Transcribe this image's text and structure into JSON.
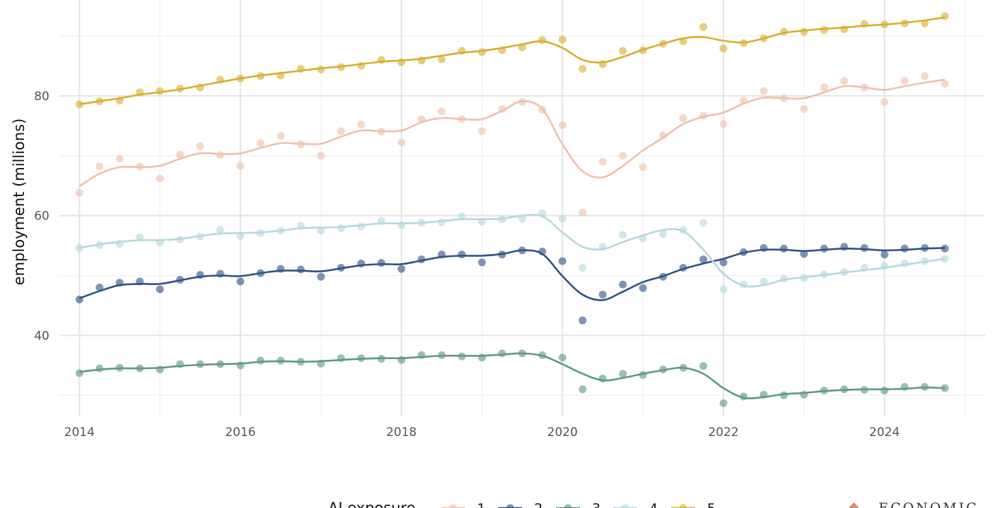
{
  "chart_data": {
    "type": "line",
    "title": "",
    "xlabel": "",
    "ylabel": "employment (millions)",
    "xlim": [
      2013.75,
      2025.25
    ],
    "ylim": [
      26.5,
      96
    ],
    "x_ticks": [
      2014,
      2016,
      2018,
      2020,
      2022,
      2024
    ],
    "x_tick_labels": [
      "2014",
      "2016",
      "2018",
      "2020",
      "2022",
      "2024"
    ],
    "y_ticks": [
      40,
      60,
      80
    ],
    "y_tick_labels": [
      "40",
      "60",
      "80"
    ],
    "grid": true,
    "legend": {
      "title": "AI exposure",
      "placement": "bottom"
    },
    "source_label": "ECONOMIC",
    "x": [
      2014,
      2014.25,
      2014.5,
      2014.75,
      2015,
      2015.25,
      2015.5,
      2015.75,
      2016,
      2016.25,
      2016.5,
      2016.75,
      2017,
      2017.25,
      2017.5,
      2017.75,
      2018,
      2018.25,
      2018.5,
      2018.75,
      2019,
      2019.25,
      2019.5,
      2019.75,
      2020,
      2020.25,
      2020.5,
      2020.75,
      2021,
      2021.25,
      2021.5,
      2021.75,
      2022,
      2022.25,
      2022.5,
      2022.75,
      2023,
      2023.25,
      2023.5,
      2023.75,
      2024,
      2024.25,
      2024.5,
      2024.75
    ],
    "series": [
      {
        "name": "1",
        "color": "#f0c0aa",
        "points": [
          63.8,
          68.2,
          69.5,
          68.2,
          66.2,
          70.2,
          71.6,
          70.1,
          68.3,
          72.1,
          73.3,
          71.9,
          70.0,
          74.1,
          75.2,
          74.0,
          72.2,
          76.1,
          77.4,
          76.1,
          74.1,
          77.8,
          79.0,
          77.7,
          75.1,
          60.5,
          69.0,
          70.0,
          68.1,
          73.4,
          76.3,
          76.7,
          75.3,
          79.2,
          80.8,
          79.6,
          77.8,
          81.4,
          82.5,
          81.4,
          79.0,
          82.5,
          83.3,
          82.0
        ],
        "trend": [
          64.9,
          67.0,
          68.1,
          68.1,
          68.3,
          69.5,
          70.4,
          70.3,
          70.4,
          71.3,
          72.1,
          72.0,
          72.0,
          73.2,
          74.2,
          74.1,
          74.2,
          75.6,
          76.3,
          76.1,
          76.1,
          77.5,
          79.1,
          77.8,
          71.9,
          67.4,
          66.4,
          68.3,
          70.9,
          73.0,
          75.3,
          76.5,
          77.2,
          78.7,
          79.7,
          79.6,
          79.6,
          80.6,
          81.6,
          81.4,
          81.0,
          81.6,
          82.2,
          82.7
        ]
      },
      {
        "name": "2",
        "color": "#2f5385",
        "points": [
          46.0,
          48.0,
          48.8,
          49.0,
          47.7,
          49.3,
          50.1,
          50.3,
          49.0,
          50.4,
          51.1,
          51.0,
          49.8,
          51.3,
          52.0,
          52.1,
          51.1,
          52.7,
          53.5,
          53.5,
          52.2,
          53.5,
          54.2,
          54.0,
          52.4,
          42.5,
          46.8,
          48.5,
          47.9,
          49.8,
          51.3,
          52.7,
          52.2,
          53.9,
          54.6,
          54.5,
          53.6,
          54.5,
          54.8,
          54.6,
          53.5,
          54.5,
          54.6,
          54.5
        ],
        "trend": [
          46.2,
          47.4,
          48.4,
          48.6,
          48.6,
          49.2,
          49.8,
          50.0,
          49.9,
          50.4,
          50.8,
          50.8,
          50.7,
          51.2,
          51.7,
          51.9,
          51.9,
          52.5,
          53.1,
          53.3,
          53.3,
          53.6,
          54.2,
          53.6,
          49.9,
          46.8,
          45.9,
          47.3,
          48.9,
          49.9,
          51.1,
          52.0,
          52.8,
          53.8,
          54.3,
          54.3,
          54.1,
          54.3,
          54.5,
          54.4,
          54.2,
          54.3,
          54.5,
          54.6
        ]
      },
      {
        "name": "3",
        "color": "#5e9a80",
        "points": [
          33.7,
          34.5,
          34.6,
          34.5,
          34.3,
          35.2,
          35.2,
          35.2,
          35.0,
          35.8,
          35.8,
          35.6,
          35.3,
          36.2,
          36.2,
          36.1,
          35.9,
          36.7,
          36.7,
          36.5,
          36.3,
          37.0,
          37.0,
          36.7,
          36.3,
          31.0,
          32.8,
          33.6,
          33.4,
          34.3,
          34.6,
          34.9,
          28.7,
          29.8,
          30.1,
          30.0,
          30.1,
          30.8,
          31.0,
          30.9,
          30.8,
          31.4,
          31.4,
          31.2
        ],
        "trend": [
          33.9,
          34.3,
          34.5,
          34.5,
          34.6,
          34.9,
          35.1,
          35.2,
          35.3,
          35.6,
          35.7,
          35.6,
          35.7,
          35.9,
          36.1,
          36.2,
          36.2,
          36.4,
          36.6,
          36.6,
          36.6,
          36.8,
          37.0,
          36.6,
          35.2,
          33.6,
          32.5,
          32.9,
          33.6,
          34.2,
          34.6,
          33.6,
          31.2,
          29.6,
          29.7,
          30.2,
          30.4,
          30.7,
          30.9,
          31.0,
          31.0,
          31.1,
          31.3,
          31.2
        ]
      },
      {
        "name": "4",
        "color": "#b6d8dd",
        "points": [
          54.6,
          55.1,
          55.3,
          56.4,
          55.5,
          56.0,
          56.5,
          57.6,
          56.6,
          57.1,
          57.5,
          58.3,
          57.5,
          57.9,
          58.2,
          59.1,
          58.4,
          58.8,
          58.9,
          59.9,
          59.0,
          59.4,
          59.5,
          60.4,
          59.5,
          51.3,
          54.8,
          56.8,
          56.2,
          56.9,
          57.6,
          58.8,
          47.7,
          48.5,
          49.0,
          49.5,
          49.6,
          50.2,
          50.6,
          51.3,
          51.6,
          52.0,
          52.4,
          52.8
        ],
        "trend": [
          54.6,
          55.2,
          55.6,
          55.9,
          55.9,
          56.1,
          56.6,
          57.0,
          57.1,
          57.2,
          57.5,
          57.9,
          58.0,
          58.1,
          58.4,
          58.7,
          58.7,
          58.8,
          59.1,
          59.4,
          59.4,
          59.5,
          60.0,
          59.9,
          57.2,
          54.8,
          54.4,
          55.6,
          56.7,
          57.6,
          57.4,
          54.3,
          50.3,
          48.3,
          48.4,
          49.3,
          49.7,
          50.1,
          50.5,
          50.9,
          51.3,
          51.8,
          52.3,
          52.8
        ]
      },
      {
        "name": "5",
        "color": "#d8ae2e",
        "points": [
          78.6,
          79.1,
          79.2,
          80.6,
          80.8,
          81.2,
          81.4,
          82.7,
          82.9,
          83.3,
          83.4,
          84.5,
          84.4,
          84.8,
          85.0,
          86.0,
          85.6,
          85.9,
          86.1,
          87.5,
          87.3,
          87.6,
          88.1,
          89.3,
          89.4,
          84.5,
          85.3,
          87.5,
          87.6,
          88.7,
          89.1,
          91.5,
          87.9,
          88.8,
          89.6,
          90.7,
          90.7,
          91.0,
          91.1,
          92.0,
          91.9,
          92.1,
          92.1,
          93.3
        ],
        "trend": [
          78.6,
          79.1,
          79.6,
          80.2,
          80.6,
          81.1,
          81.7,
          82.3,
          82.9,
          83.4,
          83.8,
          84.2,
          84.6,
          84.9,
          85.3,
          85.7,
          85.9,
          86.2,
          86.7,
          87.2,
          87.5,
          88.0,
          88.6,
          89.1,
          88.0,
          86.0,
          85.6,
          86.5,
          87.7,
          88.7,
          89.6,
          89.8,
          89.2,
          88.9,
          89.6,
          90.5,
          90.9,
          91.2,
          91.4,
          91.7,
          91.9,
          92.2,
          92.6,
          93.1
        ]
      }
    ]
  }
}
